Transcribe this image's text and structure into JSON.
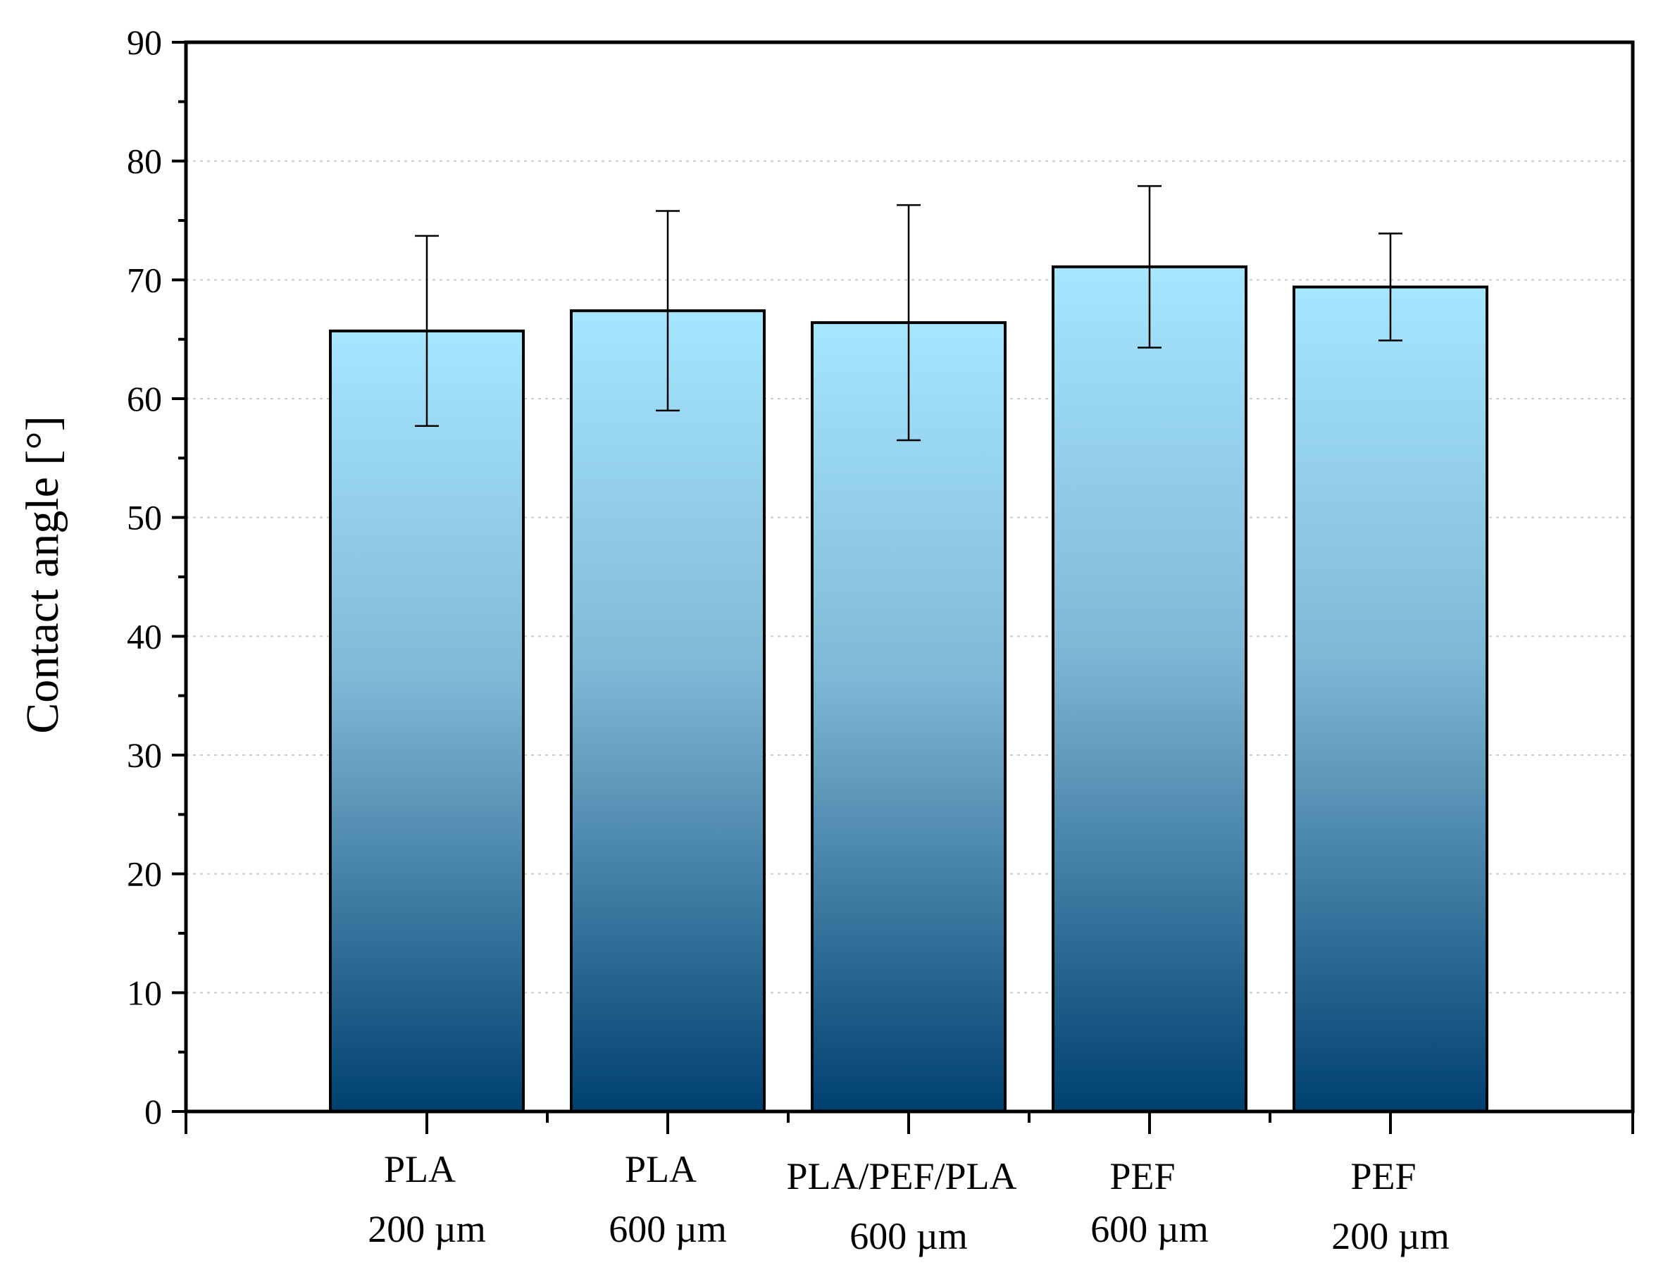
{
  "chart_data": {
    "type": "bar",
    "title": "",
    "xlabel": "",
    "ylabel": "Contact angle [°]",
    "ylim": [
      0,
      90
    ],
    "yticks": [
      0,
      10,
      20,
      30,
      40,
      50,
      60,
      70,
      80,
      90
    ],
    "grid": true,
    "categories": [
      [
        "PLA",
        "200 µm"
      ],
      [
        "PLA",
        "600 µm"
      ],
      [
        "PLA/PEF/PLA",
        "600 µm"
      ],
      [
        "PEF",
        "600 µm"
      ],
      [
        "PEF",
        "200 µm"
      ]
    ],
    "values": [
      65.7,
      67.4,
      66.4,
      71.1,
      69.4
    ],
    "errors": [
      8.0,
      8.4,
      9.9,
      6.8,
      4.5
    ],
    "colors": {
      "bar_top": "#a6e6ff",
      "bar_mid": "#7fb8d6",
      "bar_bottom": "#004070",
      "grid": "#cccccc",
      "axis": "#000000"
    }
  }
}
